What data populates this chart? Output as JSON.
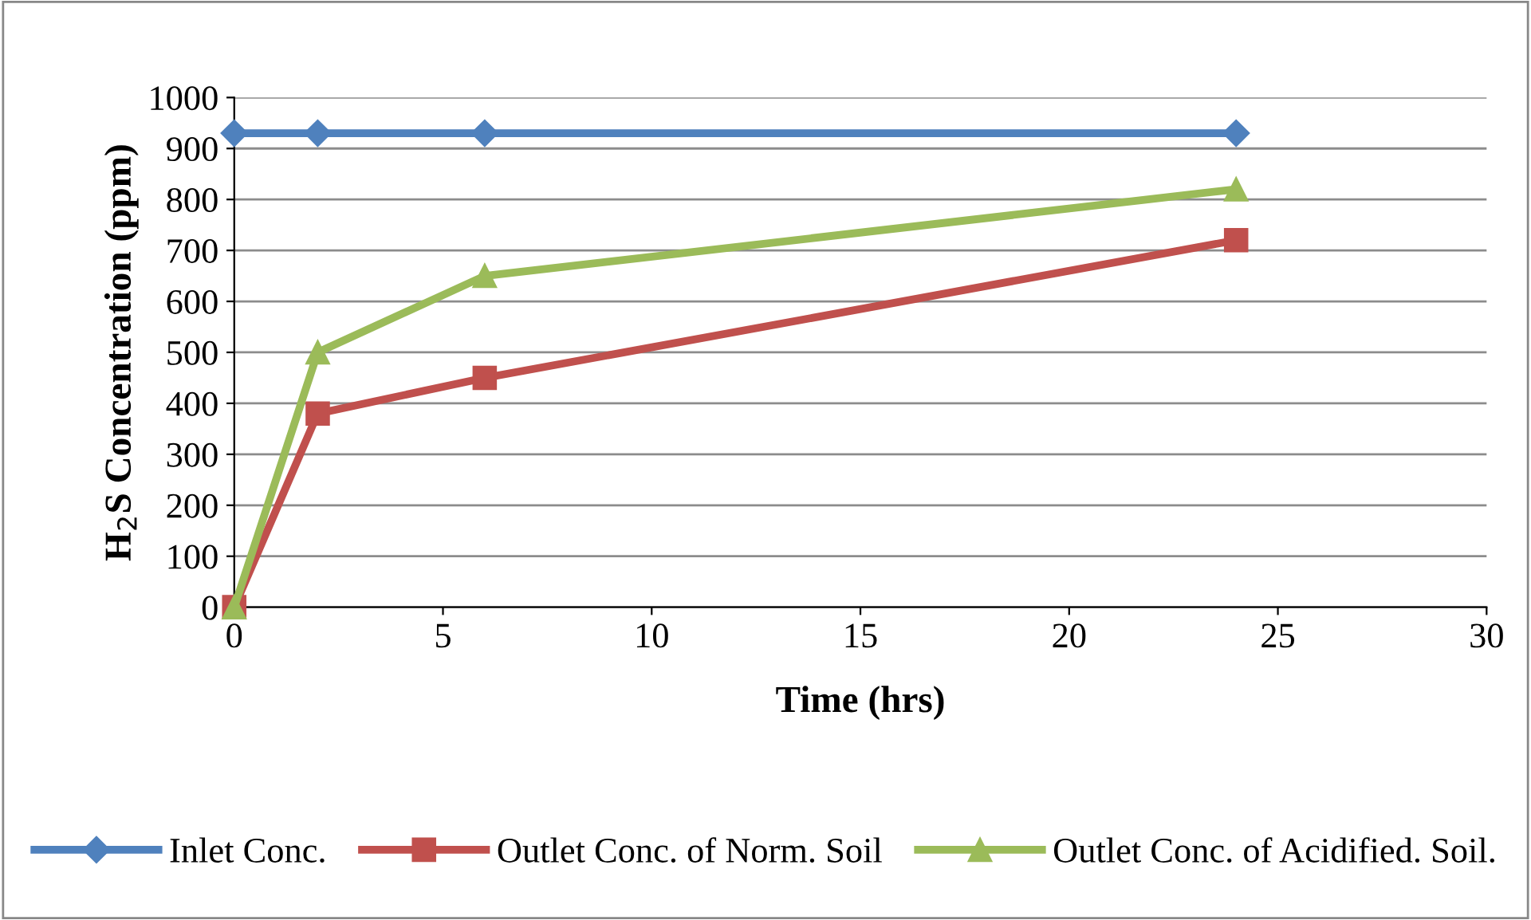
{
  "chart_data": {
    "type": "line",
    "xlabel": "Time (hrs)",
    "ylabel": "H$_{2}$S Concentration (ppm)",
    "xlim": [
      0,
      30
    ],
    "xticks": [
      0,
      5,
      10,
      15,
      20,
      25,
      30
    ],
    "ylim": [
      0,
      1000
    ],
    "yticks": [
      0,
      100,
      200,
      300,
      400,
      500,
      600,
      700,
      800,
      900,
      1000
    ],
    "grid": "y",
    "legend": "bottom",
    "line_style": "solid",
    "series": [
      {
        "name": "Inlet Conc.",
        "color": "#4f81bd",
        "marker": "diamond",
        "x": [
          0,
          2,
          6,
          24
        ],
        "values": [
          930,
          930,
          930,
          930
        ]
      },
      {
        "name": "Outlet Conc. of Norm. Soil",
        "color": "#c0504d",
        "marker": "square",
        "x": [
          0,
          2,
          6,
          24
        ],
        "values": [
          0,
          380,
          450,
          720
        ]
      },
      {
        "name": "Outlet Conc. of Acidified. Soil.",
        "color": "#9bbb59",
        "marker": "triangle",
        "x": [
          0,
          2,
          6,
          24
        ],
        "values": [
          0,
          500,
          650,
          820
        ]
      }
    ]
  }
}
